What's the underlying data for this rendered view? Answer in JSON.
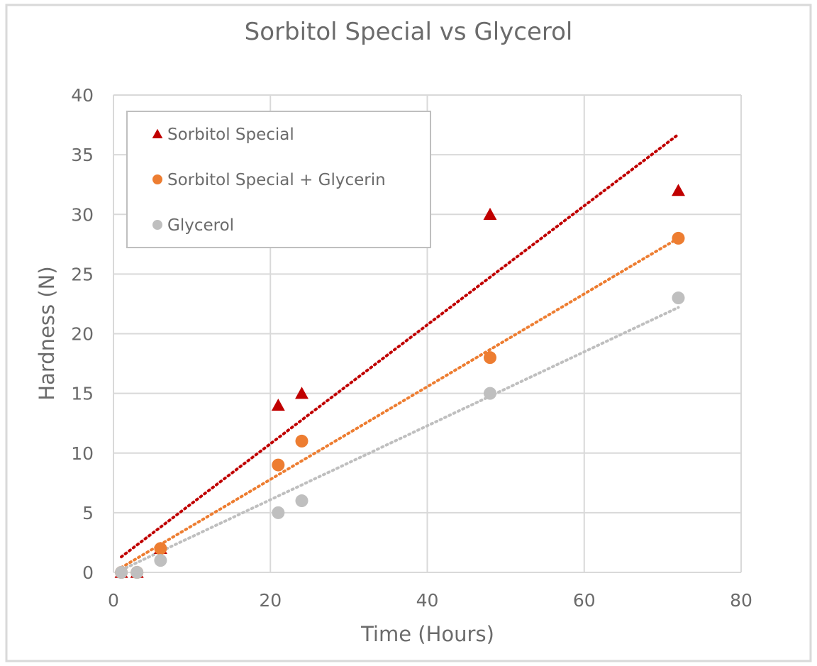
{
  "chart_data": {
    "type": "scatter",
    "title": "Sorbitol Special vs Glycerol",
    "xlabel": "Time (Hours)",
    "ylabel": "Hardness (N)",
    "xlim": [
      0,
      80
    ],
    "ylim": [
      0,
      40
    ],
    "xticks": [
      0,
      20,
      40,
      60,
      80
    ],
    "yticks": [
      0,
      5,
      10,
      15,
      20,
      25,
      30,
      35,
      40
    ],
    "grid": true,
    "legend_position": "top-left",
    "trendline": "linear (dotted)",
    "series": [
      {
        "name": "Sorbitol Special",
        "marker": "triangle",
        "color": "#C00000",
        "x": [
          1,
          3,
          6,
          21,
          24,
          48,
          72
        ],
        "y": [
          0,
          0,
          2,
          14,
          15,
          30,
          32
        ],
        "trend_x": [
          1,
          72
        ],
        "trend_y": [
          1.3,
          36.7
        ]
      },
      {
        "name": "Sorbitol Special + Glycerin",
        "marker": "circle",
        "color": "#ED7D31",
        "x": [
          1,
          3,
          6,
          21,
          24,
          48,
          72
        ],
        "y": [
          0,
          0,
          2,
          9,
          11,
          18,
          28
        ],
        "trend_x": [
          1,
          72
        ],
        "trend_y": [
          0.4,
          28.0
        ]
      },
      {
        "name": "Glycerol",
        "marker": "circle",
        "color": "#BFBFBF",
        "x": [
          1,
          3,
          6,
          21,
          24,
          48,
          72
        ],
        "y": [
          0,
          0,
          1,
          5,
          6,
          15,
          23
        ],
        "trend_x": [
          1,
          72
        ],
        "trend_y": [
          0.2,
          22.2
        ]
      }
    ]
  }
}
